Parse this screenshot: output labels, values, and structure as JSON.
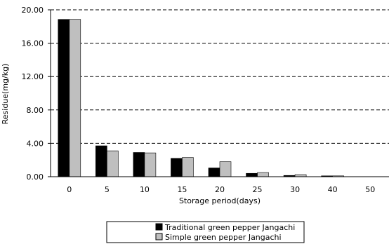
{
  "chart_data": {
    "type": "bar",
    "xlabel": "Storage period(days)",
    "ylabel": "Residue(mg/kg)",
    "categories": [
      "0",
      "5",
      "10",
      "15",
      "20",
      "25",
      "30",
      "40",
      "50"
    ],
    "ylim": [
      0,
      20
    ],
    "yticks": [
      "0.00",
      "4.00",
      "8.00",
      "12.00",
      "16.00",
      "20.00"
    ],
    "grid": "horizontal dashed",
    "legend_position": "bottom",
    "series": [
      {
        "name": "Traditional green pepper  Jangachi",
        "color": "#000000",
        "values": [
          18.85,
          3.7,
          2.9,
          2.2,
          1.05,
          0.4,
          0.15,
          0.1,
          0
        ]
      },
      {
        "name": "Simple green pepper  Jangachi",
        "color": "#bfbfbf",
        "values": [
          18.85,
          3.1,
          2.85,
          2.3,
          1.8,
          0.5,
          0.25,
          0.1,
          0
        ]
      }
    ]
  }
}
